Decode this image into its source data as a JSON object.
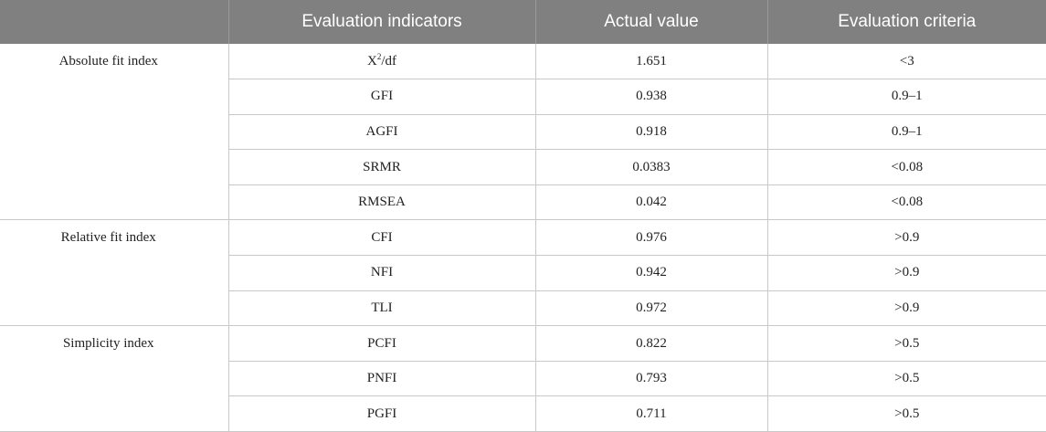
{
  "table": {
    "headers": [
      "",
      "Evaluation indicators",
      "Actual value",
      "Evaluation criteria"
    ],
    "groups": [
      {
        "name": "Absolute fit index",
        "rows": [
          {
            "indicator_base": "X",
            "indicator_sup": "2",
            "indicator_suffix": "/df",
            "actual": "1.651",
            "criteria": "<3"
          },
          {
            "indicator": "GFI",
            "actual": "0.938",
            "criteria": "0.9–1"
          },
          {
            "indicator": "AGFI",
            "actual": "0.918",
            "criteria": "0.9–1"
          },
          {
            "indicator": "SRMR",
            "actual": "0.0383",
            "criteria": "<0.08"
          },
          {
            "indicator": "RMSEA",
            "actual": "0.042",
            "criteria": "<0.08"
          }
        ]
      },
      {
        "name": "Relative fit index",
        "rows": [
          {
            "indicator": "CFI",
            "actual": "0.976",
            "criteria": ">0.9"
          },
          {
            "indicator": "NFI",
            "actual": "0.942",
            "criteria": ">0.9"
          },
          {
            "indicator": "TLI",
            "actual": "0.972",
            "criteria": ">0.9"
          }
        ]
      },
      {
        "name": "Simplicity index",
        "rows": [
          {
            "indicator": "PCFI",
            "actual": "0.822",
            "criteria": ">0.5"
          },
          {
            "indicator": "PNFI",
            "actual": "0.793",
            "criteria": ">0.5"
          },
          {
            "indicator": "PGFI",
            "actual": "0.711",
            "criteria": ">0.5"
          }
        ]
      }
    ]
  }
}
